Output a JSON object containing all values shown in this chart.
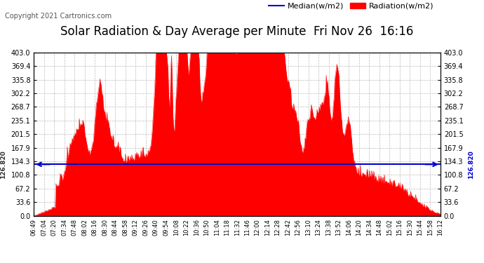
{
  "title": "Solar Radiation & Day Average per Minute  Fri Nov 26  16:16",
  "copyright": "Copyright 2021 Cartronics.com",
  "median_label": "Median(w/m2)",
  "radiation_label": "Radiation(w/m2)",
  "median_value": 126.82,
  "ymin": 0.0,
  "ymax": 403.0,
  "ytick_values": [
    0.0,
    33.6,
    67.2,
    100.8,
    134.3,
    167.9,
    201.5,
    235.1,
    268.7,
    302.2,
    335.8,
    369.4,
    403.0
  ],
  "background_color": "#ffffff",
  "grid_color": "#bbbbbb",
  "radiation_color": "#ff0000",
  "median_color": "#0000cc",
  "title_color": "#000000",
  "title_fontsize": 12,
  "copyright_fontsize": 7,
  "legend_fontsize": 8,
  "tick_fontsize": 7,
  "xtick_labels": [
    "06:49",
    "07:04",
    "07:20",
    "07:34",
    "07:48",
    "08:02",
    "08:16",
    "08:30",
    "08:44",
    "08:58",
    "09:12",
    "09:26",
    "09:40",
    "09:54",
    "10:08",
    "10:22",
    "10:36",
    "10:50",
    "11:04",
    "11:18",
    "11:32",
    "11:46",
    "12:00",
    "12:14",
    "12:28",
    "12:42",
    "12:56",
    "13:10",
    "13:24",
    "13:38",
    "13:52",
    "14:06",
    "14:20",
    "14:34",
    "14:48",
    "15:02",
    "15:16",
    "15:30",
    "15:44",
    "15:58",
    "16:12"
  ]
}
